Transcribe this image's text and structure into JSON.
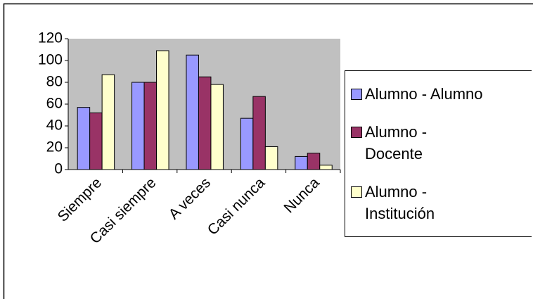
{
  "chart_data": {
    "type": "bar",
    "categories": [
      "Siempre",
      "Casi siempre",
      "A veces",
      "Casi nunca",
      "Nunca"
    ],
    "series": [
      {
        "name": "Alumno - Alumno",
        "color": "#9999ff",
        "values": [
          57,
          80,
          105,
          47,
          12
        ]
      },
      {
        "name": "Alumno - Docente",
        "color": "#993366",
        "values": [
          52,
          80,
          85,
          67,
          15
        ]
      },
      {
        "name": "Alumno - Institución",
        "color": "#ffffcc",
        "values": [
          87,
          109,
          78,
          21,
          4
        ]
      }
    ],
    "ylim": [
      0,
      120
    ],
    "yticks": [
      0,
      20,
      40,
      60,
      80,
      100,
      120
    ],
    "grid": false,
    "legend": "right"
  }
}
